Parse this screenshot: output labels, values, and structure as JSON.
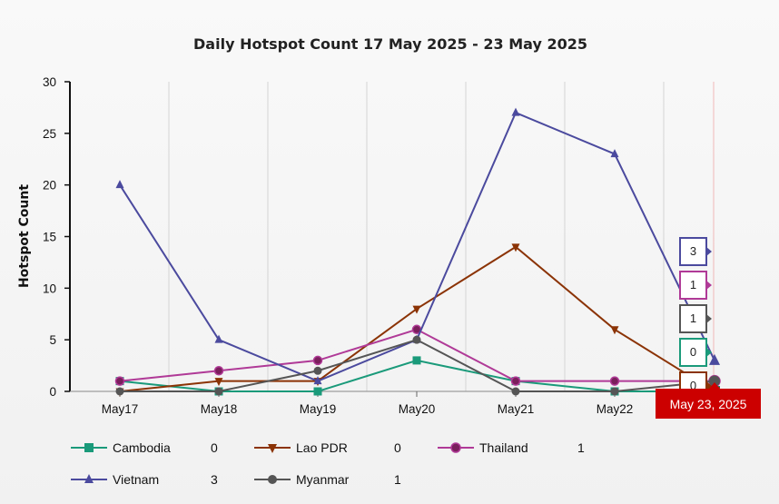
{
  "chart_data": {
    "type": "line",
    "title": "Daily Hotspot Count 17 May 2025 - 23 May 2025",
    "ylabel": "Hotspot Count",
    "xlabel": "",
    "categories": [
      "May17",
      "May18",
      "May19",
      "May20",
      "May21",
      "May22",
      "May23"
    ],
    "x_tick_labels": [
      "May17",
      "May18",
      "May19",
      "May20",
      "May21",
      "May22"
    ],
    "ylim": [
      0,
      30
    ],
    "yticks": [
      0,
      5,
      10,
      15,
      20,
      25,
      30
    ],
    "grid": "vertical",
    "hover_x_label": "May 23, 2025",
    "series": [
      {
        "name": "Cambodia",
        "color": "#1a9a7a",
        "marker": "square",
        "values": [
          1,
          0,
          0,
          3,
          1,
          0,
          0
        ],
        "legend_value": "0"
      },
      {
        "name": "Lao PDR",
        "color": "#8b3305",
        "marker": "triangle-down",
        "values": [
          0,
          1,
          1,
          8,
          14,
          6,
          0
        ],
        "legend_value": "0"
      },
      {
        "name": "Thailand",
        "color": "#b03a97",
        "marker": "circle",
        "values": [
          1,
          2,
          3,
          6,
          1,
          1,
          1
        ],
        "legend_value": "1"
      },
      {
        "name": "Vietnam",
        "color": "#4b4a9e",
        "marker": "triangle-up",
        "values": [
          20,
          5,
          1,
          5,
          27,
          23,
          3
        ],
        "legend_value": "3"
      },
      {
        "name": "Myanmar",
        "color": "#555555",
        "marker": "circle",
        "values": [
          0,
          0,
          2,
          5,
          0,
          0,
          1
        ],
        "legend_value": "1"
      }
    ],
    "tooltip_order": [
      "Vietnam",
      "Thailand",
      "Myanmar",
      "Cambodia",
      "Lao PDR"
    ],
    "legend_position": "bottom"
  }
}
